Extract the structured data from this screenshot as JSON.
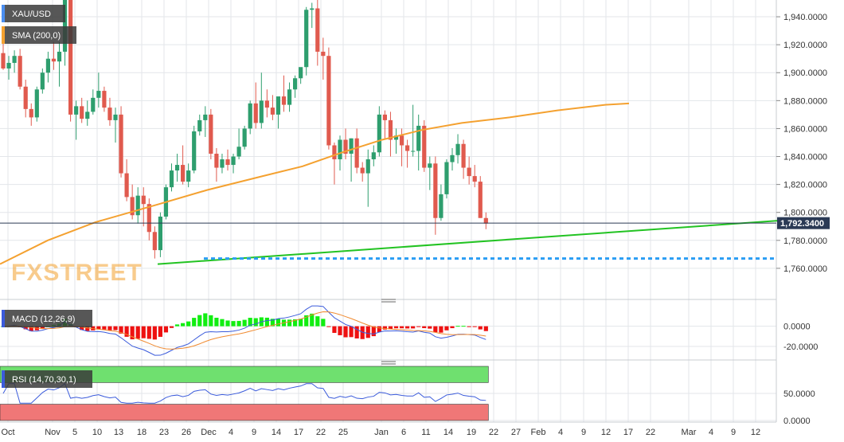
{
  "colors": {
    "bull": "#2e9e6e",
    "bear": "#e05a4e",
    "sma": "#f4a130",
    "trendline": "#22c322",
    "support": "#2a9df4",
    "macd_line": "#3b5bdb",
    "signal_line": "#f08a30",
    "hist_pos": "#11ee11",
    "hist_neg": "#ee1111",
    "rsi_line": "#3b5bdb",
    "rsi_over": "#6fe06f",
    "rsi_under": "#f07777",
    "price_tag": "#2b3a55",
    "watermark": "#f4a130"
  },
  "chart_data": [
    {
      "type": "candlestick",
      "title": "XAU/USD",
      "indicator": "SMA (200,0)",
      "current_price": "1,792.3400",
      "watermark": "FXSTREET",
      "ylim": [
        1740,
        1952
      ],
      "yticks": [
        "1,760.0000",
        "1,780.0000",
        "1,800.0000",
        "1,820.0000",
        "1,840.0000",
        "1,860.0000",
        "1,880.0000",
        "1,900.0000",
        "1,920.0000",
        "1,940.0000"
      ],
      "ytick_values": [
        1760,
        1780,
        1800,
        1820,
        1840,
        1860,
        1880,
        1900,
        1920,
        1940
      ],
      "xticks": [
        "Oct",
        "Nov",
        "5",
        "10",
        "13",
        "18",
        "23",
        "26",
        "Dec",
        "4",
        "9",
        "14",
        "17",
        "22",
        "25",
        "Jan",
        "6",
        "11",
        "14",
        "19",
        "22",
        "27",
        "Feb",
        "4",
        "9",
        "12",
        "17",
        "22",
        "Mar",
        "4",
        "9",
        "12"
      ],
      "candles": [
        [
          1914,
          1922,
          1902,
          1903
        ],
        [
          1903,
          1912,
          1895,
          1907
        ],
        [
          1907,
          1916,
          1900,
          1912
        ],
        [
          1912,
          1917,
          1888,
          1890
        ],
        [
          1890,
          1895,
          1868,
          1874
        ],
        [
          1874,
          1878,
          1862,
          1868
        ],
        [
          1868,
          1890,
          1865,
          1888
        ],
        [
          1888,
          1903,
          1885,
          1900
        ],
        [
          1900,
          1915,
          1893,
          1910
        ],
        [
          1910,
          1922,
          1902,
          1908
        ],
        [
          1908,
          1922,
          1890,
          1915
        ],
        [
          1915,
          1965,
          1905,
          1960
        ],
        [
          1960,
          1970,
          1865,
          1870
        ],
        [
          1870,
          1880,
          1852,
          1876
        ],
        [
          1876,
          1882,
          1864,
          1867
        ],
        [
          1867,
          1880,
          1862,
          1872
        ],
        [
          1872,
          1888,
          1870,
          1882
        ],
        [
          1882,
          1900,
          1875,
          1887
        ],
        [
          1887,
          1890,
          1872,
          1875
        ],
        [
          1875,
          1882,
          1862,
          1866
        ],
        [
          1866,
          1875,
          1850,
          1870
        ],
        [
          1870,
          1876,
          1825,
          1828
        ],
        [
          1828,
          1838,
          1808,
          1811
        ],
        [
          1811,
          1820,
          1795,
          1798
        ],
        [
          1798,
          1818,
          1792,
          1812
        ],
        [
          1812,
          1818,
          1790,
          1806
        ],
        [
          1806,
          1810,
          1780,
          1786
        ],
        [
          1786,
          1790,
          1767,
          1773
        ],
        [
          1773,
          1800,
          1768,
          1797
        ],
        [
          1797,
          1820,
          1795,
          1818
        ],
        [
          1818,
          1835,
          1815,
          1830
        ],
        [
          1830,
          1842,
          1822,
          1834
        ],
        [
          1834,
          1848,
          1820,
          1822
        ],
        [
          1822,
          1835,
          1818,
          1830
        ],
        [
          1830,
          1862,
          1828,
          1858
        ],
        [
          1858,
          1870,
          1855,
          1866
        ],
        [
          1866,
          1876,
          1854,
          1870
        ],
        [
          1870,
          1874,
          1838,
          1842
        ],
        [
          1842,
          1846,
          1822,
          1832
        ],
        [
          1832,
          1842,
          1828,
          1838
        ],
        [
          1838,
          1845,
          1830,
          1834
        ],
        [
          1834,
          1842,
          1828,
          1840
        ],
        [
          1840,
          1860,
          1838,
          1847
        ],
        [
          1847,
          1862,
          1845,
          1860
        ],
        [
          1860,
          1880,
          1856,
          1878
        ],
        [
          1878,
          1893,
          1860,
          1864
        ],
        [
          1864,
          1900,
          1860,
          1880
        ],
        [
          1880,
          1888,
          1868,
          1875
        ],
        [
          1875,
          1884,
          1866,
          1870
        ],
        [
          1870,
          1882,
          1860,
          1883
        ],
        [
          1883,
          1898,
          1872,
          1877
        ],
        [
          1877,
          1893,
          1872,
          1888
        ],
        [
          1888,
          1898,
          1882,
          1896
        ],
        [
          1896,
          1903,
          1892,
          1904
        ],
        [
          1904,
          1947,
          1898,
          1945
        ],
        [
          1945,
          1950,
          1932,
          1946
        ],
        [
          1946,
          1960,
          1905,
          1915
        ],
        [
          1915,
          1925,
          1895,
          1912
        ],
        [
          1912,
          1918,
          1845,
          1848
        ],
        [
          1848,
          1850,
          1820,
          1838
        ],
        [
          1838,
          1855,
          1830,
          1852
        ],
        [
          1852,
          1860,
          1838,
          1842
        ],
        [
          1842,
          1853,
          1822,
          1853
        ],
        [
          1853,
          1860,
          1828,
          1832
        ],
        [
          1832,
          1836,
          1822,
          1828
        ],
        [
          1828,
          1845,
          1804,
          1838
        ],
        [
          1838,
          1848,
          1833,
          1843
        ],
        [
          1843,
          1876,
          1840,
          1870
        ],
        [
          1870,
          1873,
          1852,
          1866
        ],
        [
          1866,
          1872,
          1840,
          1852
        ],
        [
          1852,
          1860,
          1842,
          1855
        ],
        [
          1855,
          1860,
          1833,
          1848
        ],
        [
          1848,
          1852,
          1832,
          1844
        ],
        [
          1844,
          1877,
          1840,
          1844
        ],
        [
          1844,
          1870,
          1830,
          1862
        ],
        [
          1862,
          1866,
          1829,
          1832
        ],
        [
          1832,
          1840,
          1816,
          1835
        ],
        [
          1835,
          1840,
          1784,
          1796
        ],
        [
          1796,
          1820,
          1794,
          1813
        ],
        [
          1813,
          1838,
          1810,
          1836
        ],
        [
          1836,
          1846,
          1830,
          1841
        ],
        [
          1841,
          1856,
          1835,
          1849
        ],
        [
          1849,
          1852,
          1824,
          1832
        ],
        [
          1832,
          1840,
          1820,
          1826
        ],
        [
          1826,
          1834,
          1818,
          1822
        ],
        [
          1822,
          1826,
          1796,
          1796
        ],
        [
          1796,
          1800,
          1788,
          1792
        ]
      ],
      "sma": [
        [
          0,
          1763
        ],
        [
          60,
          1780
        ],
        [
          120,
          1793
        ],
        [
          200,
          1806
        ],
        [
          260,
          1816
        ],
        [
          330,
          1826
        ],
        [
          380,
          1833
        ],
        [
          430,
          1843
        ],
        [
          480,
          1852
        ],
        [
          530,
          1859
        ],
        [
          580,
          1864
        ],
        [
          640,
          1868
        ],
        [
          700,
          1873
        ],
        [
          760,
          1877
        ],
        [
          790,
          1878
        ]
      ],
      "trendline": [
        [
          198,
          1763
        ],
        [
          1000,
          1795
        ]
      ],
      "support_level": 1767
    },
    {
      "type": "macd",
      "title": "MACD (12,26,9)",
      "ylim": [
        -31,
        21
      ],
      "yticks": [
        "0.0000",
        "-20.0000"
      ],
      "ytick_values": [
        0,
        -20
      ]
    },
    {
      "type": "rsi",
      "title": "RSI (14,70,30,1)",
      "ylim": [
        -3,
        100
      ],
      "yticks": [
        "50.0000",
        "0.0000"
      ],
      "ytick_values": [
        50,
        0
      ],
      "overbought": 70,
      "oversold": 30
    }
  ]
}
